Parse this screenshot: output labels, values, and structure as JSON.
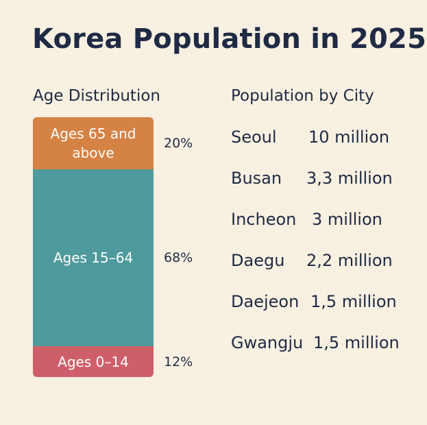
{
  "title": "Korea Population in 2025",
  "age_section": {
    "title": "Age Distribution"
  },
  "city_section": {
    "title": "Population by City"
  },
  "chart_data": [
    {
      "type": "bar",
      "title": "Age Distribution",
      "stacked": true,
      "unit": "%",
      "segments": [
        {
          "label": "Ages 65 and above",
          "value": 20,
          "value_label": "20%",
          "color": "#d58245"
        },
        {
          "label": "Ages 15–64",
          "value": 68,
          "value_label": "68%",
          "color": "#4f9a9c"
        },
        {
          "label": "Ages 0–14",
          "value": 12,
          "value_label": "12%",
          "color": "#ce5f6a"
        }
      ]
    },
    {
      "type": "table",
      "title": "Population by City",
      "rows": [
        {
          "city": "Seoul",
          "value": "10 million"
        },
        {
          "city": "Busan",
          "value": "3,3 million"
        },
        {
          "city": "Incheon",
          "value": "3 million"
        },
        {
          "city": "Daegu",
          "value": "2,2 million"
        },
        {
          "city": "Daejeon",
          "value": "1,5 million"
        },
        {
          "city": "Gwangju",
          "value": "1,5 million"
        }
      ]
    }
  ]
}
